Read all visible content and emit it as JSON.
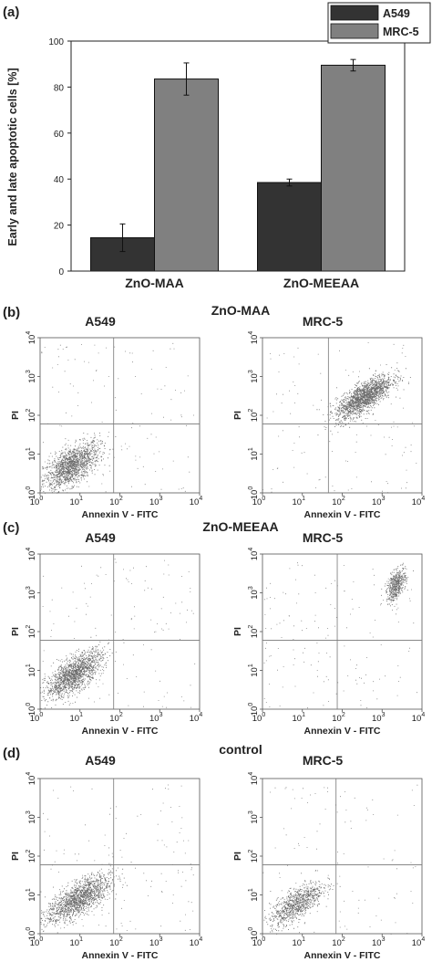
{
  "panel_labels": {
    "a": "(a)",
    "b": "(b)",
    "c": "(c)",
    "d": "(d)"
  },
  "row_titles": [
    "ZnO-MAA",
    "ZnO-MEEAA",
    "control"
  ],
  "col_titles": [
    "A549",
    "MRC-5"
  ],
  "flow_axes": {
    "xlabel": "Annexin V - FITC",
    "ylabel": "PI",
    "ticks": [
      {
        "base": "10",
        "exp": "0"
      },
      {
        "base": "10",
        "exp": "1"
      },
      {
        "base": "10",
        "exp": "2"
      },
      {
        "base": "10",
        "exp": "3"
      },
      {
        "base": "10",
        "exp": "4"
      }
    ]
  },
  "chart_data": [
    {
      "type": "bar",
      "panel": "(a)",
      "categories": [
        "ZnO-MAA",
        "ZnO-MEEAA"
      ],
      "series": [
        {
          "name": "A549",
          "values": [
            14.5,
            38.5
          ],
          "errors": [
            6,
            1.5
          ],
          "color": "#333333"
        },
        {
          "name": "MRC-5",
          "values": [
            83.5,
            89.5
          ],
          "errors": [
            7,
            2.5
          ],
          "color": "#808080"
        }
      ],
      "title": "",
      "xlabel": "",
      "ylabel": "Early and late apoptotic cells [%]",
      "ylim": [
        0,
        100
      ],
      "yticks": [
        0,
        20,
        40,
        60,
        80,
        100
      ],
      "legend": "top-right",
      "grid": false
    },
    {
      "type": "scatter",
      "panel": "(b)",
      "row": "ZnO-MAA",
      "column": "A549",
      "x_scale": "log",
      "y_scale": "log",
      "xlim": [
        1,
        10000
      ],
      "ylim": [
        1,
        10000
      ],
      "quadrant_gate": {
        "x": 70,
        "y": 60
      },
      "population": {
        "center_x": 6,
        "center_y": 5,
        "spread_x_decades": 0.35,
        "spread_y_decades": 0.3,
        "correlation": 0.6,
        "points": 1500
      },
      "sparse_points": 120,
      "grid": false
    },
    {
      "type": "scatter",
      "panel": "(b)",
      "row": "ZnO-MAA",
      "column": "MRC-5",
      "x_scale": "log",
      "y_scale": "log",
      "xlim": [
        1,
        10000
      ],
      "ylim": [
        1,
        10000
      ],
      "quadrant_gate": {
        "x": 45,
        "y": 60
      },
      "population": {
        "center_x": 350,
        "center_y": 300,
        "spread_x_decades": 0.35,
        "spread_y_decades": 0.28,
        "correlation": 0.75,
        "points": 1700
      },
      "sparse_points": 120,
      "grid": false
    },
    {
      "type": "scatter",
      "panel": "(c)",
      "row": "ZnO-MEEAA",
      "column": "A549",
      "x_scale": "log",
      "y_scale": "log",
      "xlim": [
        1,
        10000
      ],
      "ylim": [
        1,
        10000
      ],
      "quadrant_gate": {
        "x": 70,
        "y": 60
      },
      "population": {
        "center_x": 7,
        "center_y": 8,
        "spread_x_decades": 0.35,
        "spread_y_decades": 0.3,
        "correlation": 0.7,
        "points": 1500
      },
      "sparse_points": 130,
      "grid": false
    },
    {
      "type": "scatter",
      "panel": "(c)",
      "row": "ZnO-MEEAA",
      "column": "MRC-5",
      "x_scale": "log",
      "y_scale": "log",
      "xlim": [
        1,
        10000
      ],
      "ylim": [
        1,
        10000
      ],
      "quadrant_gate": {
        "x": 75,
        "y": 60
      },
      "population": {
        "center_x": 2200,
        "center_y": 1600,
        "spread_x_decades": 0.12,
        "spread_y_decades": 0.2,
        "correlation": 0.5,
        "points": 500
      },
      "sparse_points": 150,
      "grid": false
    },
    {
      "type": "scatter",
      "panel": "(d)",
      "row": "control",
      "column": "A549",
      "x_scale": "log",
      "y_scale": "log",
      "xlim": [
        1,
        10000
      ],
      "ylim": [
        1,
        10000
      ],
      "quadrant_gate": {
        "x": 70,
        "y": 60
      },
      "population": {
        "center_x": 9,
        "center_y": 8,
        "spread_x_decades": 0.4,
        "spread_y_decades": 0.3,
        "correlation": 0.7,
        "points": 1500
      },
      "sparse_points": 130,
      "grid": false
    },
    {
      "type": "scatter",
      "panel": "(d)",
      "row": "control",
      "column": "MRC-5",
      "x_scale": "log",
      "y_scale": "log",
      "xlim": [
        1,
        10000
      ],
      "ylim": [
        1,
        10000
      ],
      "quadrant_gate": {
        "x": 70,
        "y": 60
      },
      "population": {
        "center_x": 7,
        "center_y": 6,
        "spread_x_decades": 0.33,
        "spread_y_decades": 0.28,
        "correlation": 0.7,
        "points": 900
      },
      "sparse_points": 100,
      "grid": false
    }
  ]
}
